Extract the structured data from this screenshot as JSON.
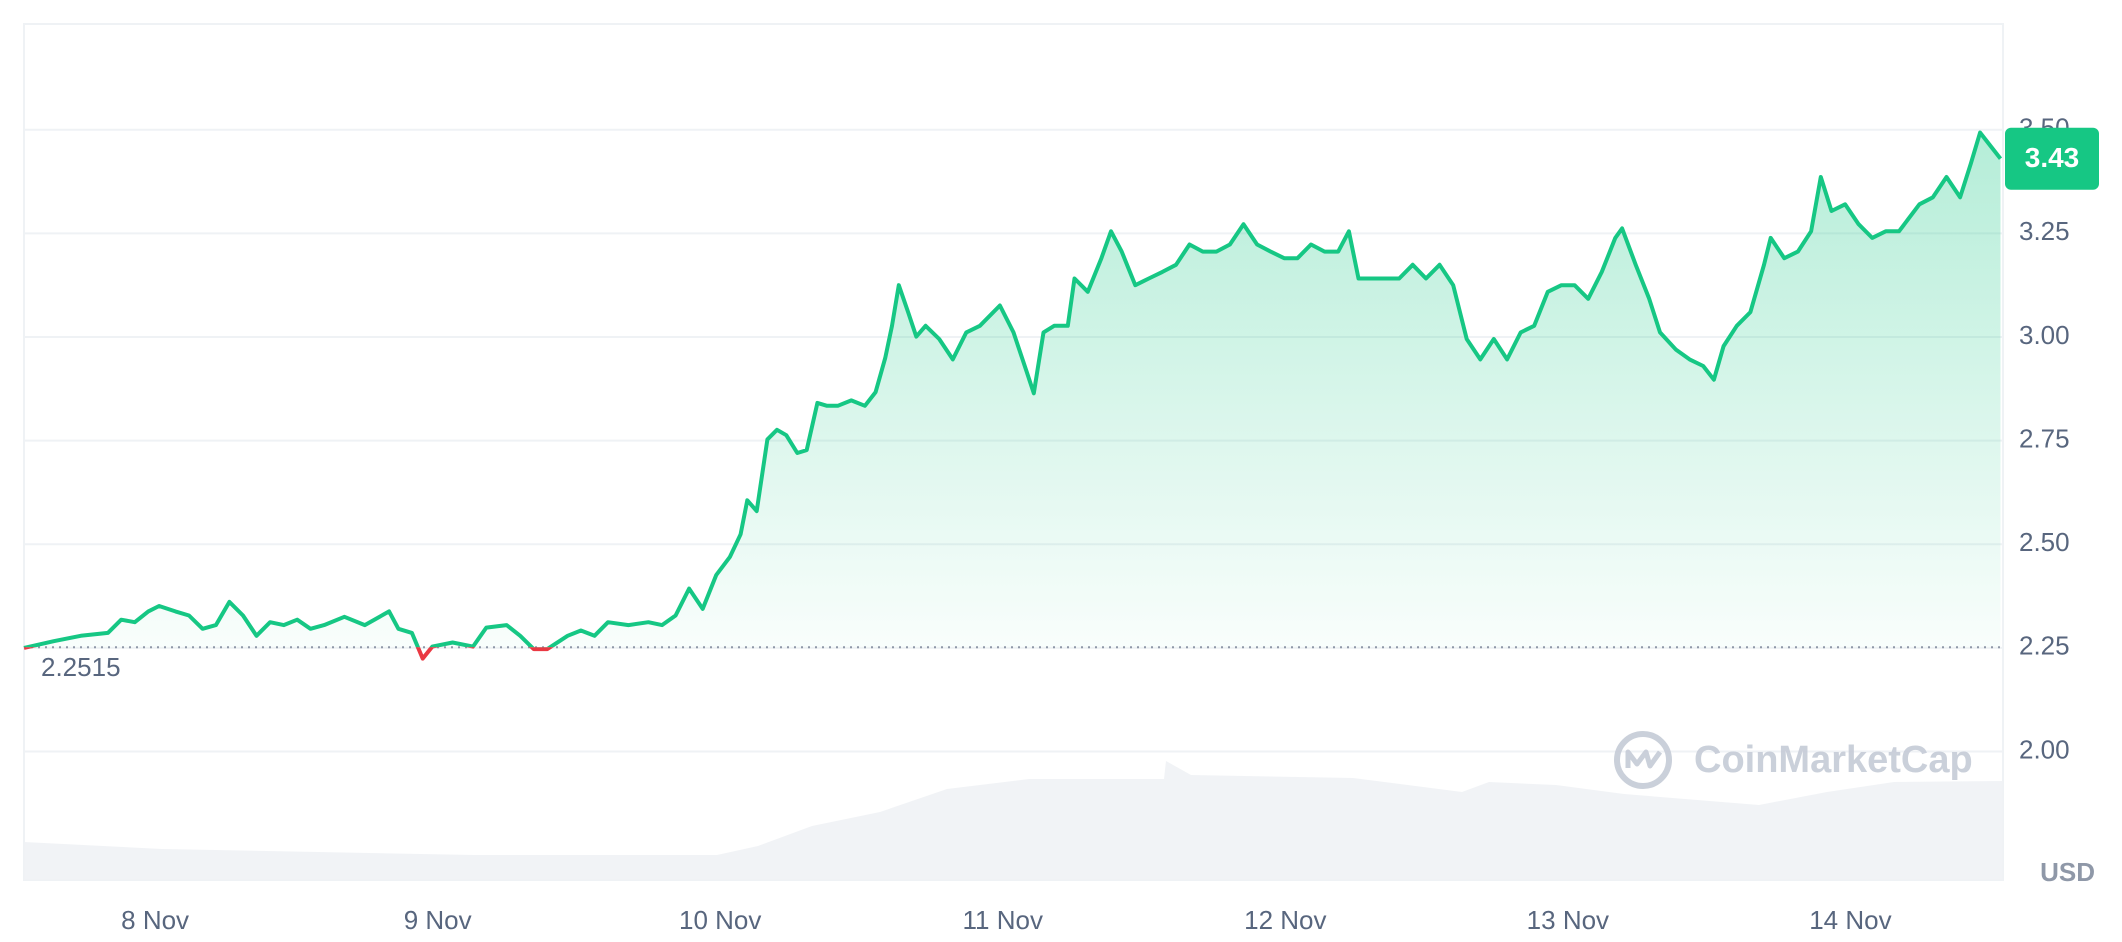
{
  "chart_data": {
    "type": "line",
    "x": [
      7.536,
      7.641,
      7.737,
      7.833,
      7.88,
      7.928,
      7.976,
      8.014,
      8.072,
      8.12,
      8.168,
      8.215,
      8.263,
      8.311,
      8.359,
      8.407,
      8.455,
      8.503,
      8.55,
      8.598,
      8.67,
      8.742,
      8.828,
      8.861,
      8.909,
      8.947,
      8.981,
      9.053,
      9.125,
      9.172,
      9.244,
      9.292,
      9.34,
      9.388,
      9.46,
      9.507,
      9.555,
      9.603,
      9.675,
      9.746,
      9.794,
      9.842,
      9.89,
      9.938,
      9.986,
      10.034,
      10.072,
      10.096,
      10.129,
      10.167,
      10.201,
      10.234,
      10.273,
      10.306,
      10.344,
      10.378,
      10.416,
      10.464,
      10.512,
      10.55,
      10.584,
      10.608,
      10.632,
      10.665,
      10.694,
      10.727,
      10.775,
      10.823,
      10.871,
      10.919,
      10.99,
      11.038,
      11.086,
      11.11,
      11.144,
      11.182,
      11.23,
      11.254,
      11.301,
      11.349,
      11.383,
      11.421,
      11.469,
      11.517,
      11.565,
      11.613,
      11.661,
      11.708,
      11.756,
      11.804,
      11.852,
      11.9,
      11.948,
      11.996,
      12.043,
      12.091,
      12.139,
      12.187,
      12.225,
      12.259,
      12.307,
      12.355,
      12.403,
      12.451,
      12.498,
      12.546,
      12.594,
      12.642,
      12.69,
      12.738,
      12.785,
      12.833,
      12.881,
      12.929,
      12.977,
      13.024,
      13.072,
      13.12,
      13.168,
      13.192,
      13.24,
      13.288,
      13.326,
      13.383,
      13.431,
      13.479,
      13.517,
      13.551,
      13.598,
      13.646,
      13.694,
      13.718,
      13.766,
      13.814,
      13.861,
      13.895,
      13.933,
      13.981,
      14.029,
      14.077,
      14.125,
      14.172,
      14.244,
      14.292,
      14.34,
      14.388,
      14.426,
      14.459,
      14.507,
      14.531
    ],
    "values": [
      2.25,
      2.266,
      2.279,
      2.286,
      2.318,
      2.312,
      2.338,
      2.351,
      2.338,
      2.328,
      2.296,
      2.305,
      2.361,
      2.328,
      2.279,
      2.312,
      2.305,
      2.318,
      2.296,
      2.305,
      2.325,
      2.305,
      2.338,
      2.296,
      2.286,
      2.224,
      2.253,
      2.263,
      2.253,
      2.299,
      2.305,
      2.279,
      2.247,
      2.247,
      2.279,
      2.292,
      2.279,
      2.312,
      2.305,
      2.312,
      2.305,
      2.328,
      2.393,
      2.344,
      2.426,
      2.469,
      2.524,
      2.606,
      2.58,
      2.753,
      2.776,
      2.763,
      2.72,
      2.727,
      2.841,
      2.834,
      2.834,
      2.847,
      2.834,
      2.867,
      2.949,
      3.027,
      3.125,
      3.06,
      3.001,
      3.027,
      2.995,
      2.946,
      3.011,
      3.027,
      3.076,
      3.011,
      2.913,
      2.864,
      3.011,
      3.027,
      3.027,
      3.141,
      3.109,
      3.19,
      3.255,
      3.206,
      3.125,
      3.141,
      3.157,
      3.174,
      3.223,
      3.206,
      3.206,
      3.223,
      3.272,
      3.223,
      3.206,
      3.19,
      3.19,
      3.223,
      3.206,
      3.206,
      3.255,
      3.141,
      3.141,
      3.141,
      3.141,
      3.174,
      3.141,
      3.174,
      3.125,
      2.995,
      2.946,
      2.995,
      2.946,
      3.011,
      3.027,
      3.109,
      3.125,
      3.125,
      3.092,
      3.157,
      3.239,
      3.262,
      3.174,
      3.092,
      3.011,
      2.969,
      2.946,
      2.93,
      2.897,
      2.978,
      3.027,
      3.06,
      3.174,
      3.239,
      3.19,
      3.206,
      3.255,
      3.386,
      3.304,
      3.32,
      3.272,
      3.239,
      3.255,
      3.255,
      3.32,
      3.337,
      3.386,
      3.337,
      3.418,
      3.493,
      3.451,
      3.43
    ],
    "up_color": "#16c784",
    "down_color": "#ea3943",
    "baseline": 2.2515,
    "last_price": 3.43,
    "xlim": [
      7.536,
      14.54
    ],
    "xticks": [
      {
        "value": 8,
        "label": "8 Nov"
      },
      {
        "value": 9,
        "label": "9 Nov"
      },
      {
        "value": 10,
        "label": "10 Nov"
      },
      {
        "value": 11,
        "label": "11 Nov"
      },
      {
        "value": 12,
        "label": "12 Nov"
      },
      {
        "value": 13,
        "label": "13 Nov"
      },
      {
        "value": 14,
        "label": "14 Nov"
      }
    ],
    "ylim": [
      1.69,
      3.755
    ],
    "yticks": [
      {
        "value": 2,
        "label": "2.00"
      },
      2.25,
      {
        "value": 2.5,
        "label": "2.50"
      },
      2.75,
      {
        "value": 3,
        "label": "3.00"
      },
      3.25,
      {
        "value": 3.5,
        "label": "3.50"
      }
    ],
    "grid": true,
    "currency": "USD",
    "watermark": "CoinMarketCap"
  }
}
